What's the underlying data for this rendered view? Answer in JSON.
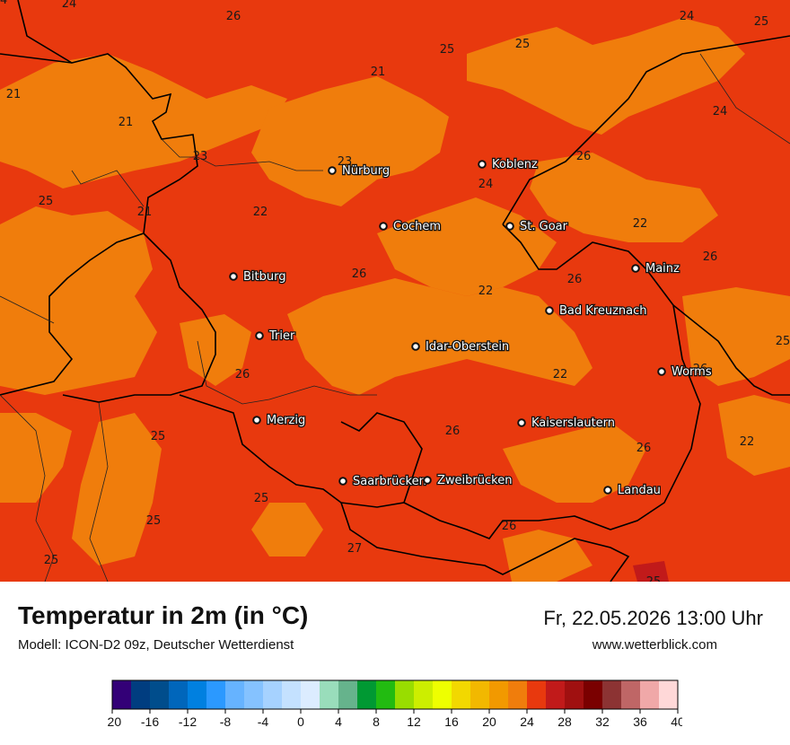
{
  "header": {
    "title": "Temperatur in 2m (in °C)",
    "model": "Modell: ICON-D2 09z, Deutscher Wetterdienst",
    "datetime": "Fr, 22.05.2026 13:00 Uhr",
    "website": "www.wetterblick.com"
  },
  "colors": {
    "t22_24": "#f07d0c",
    "t24_26": "#e8390e",
    "t26_28": "#c11a1a",
    "border": "#000000"
  },
  "cities": [
    {
      "name": "Nürburg"
    },
    {
      "name": "Koblenz"
    },
    {
      "name": "Cochem"
    },
    {
      "name": "St. Goar"
    },
    {
      "name": "Mainz"
    },
    {
      "name": "Bitburg"
    },
    {
      "name": "Bad Kreuznach"
    },
    {
      "name": "Trier"
    },
    {
      "name": "Idar-Oberstein"
    },
    {
      "name": "Worms"
    },
    {
      "name": "Merzig"
    },
    {
      "name": "Kaiserslautern"
    },
    {
      "name": "Saarbrücken"
    },
    {
      "name": "Zweibrücken"
    },
    {
      "name": "Landau"
    }
  ],
  "temperature_labels": [
    "24",
    "26",
    "24",
    "24",
    "25",
    "25",
    "25",
    "21",
    "21",
    "21",
    "23",
    "23",
    "25",
    "21",
    "22",
    "24",
    "26",
    "26",
    "22",
    "26",
    "22",
    "24",
    "26",
    "25",
    "26",
    "22",
    "26",
    "22",
    "25",
    "25",
    "25",
    "26",
    "26",
    "25",
    "27",
    "25",
    "26"
  ],
  "scale": {
    "ticks": [
      "-20",
      "-16",
      "-12",
      "-8",
      "-4",
      "0",
      "4",
      "8",
      "12",
      "16",
      "20",
      "24",
      "28",
      "32",
      "36",
      "40"
    ],
    "colors": [
      "#330077",
      "#003d80",
      "#004d8c",
      "#0066bb",
      "#0080e0",
      "#2b99ff",
      "#66b3ff",
      "#85c2ff",
      "#a6d2ff",
      "#c4e1ff",
      "#dcecff",
      "#99ddbb",
      "#66b38c",
      "#009933",
      "#22bb11",
      "#99dd00",
      "#ccee00",
      "#eeff00",
      "#f2d800",
      "#f2b800",
      "#f29900",
      "#f07d0c",
      "#e8390e",
      "#c11a1a",
      "#a01010",
      "#7a0000",
      "#8c3333",
      "#bf6666",
      "#f0a8a8",
      "#ffd8d8"
    ]
  }
}
